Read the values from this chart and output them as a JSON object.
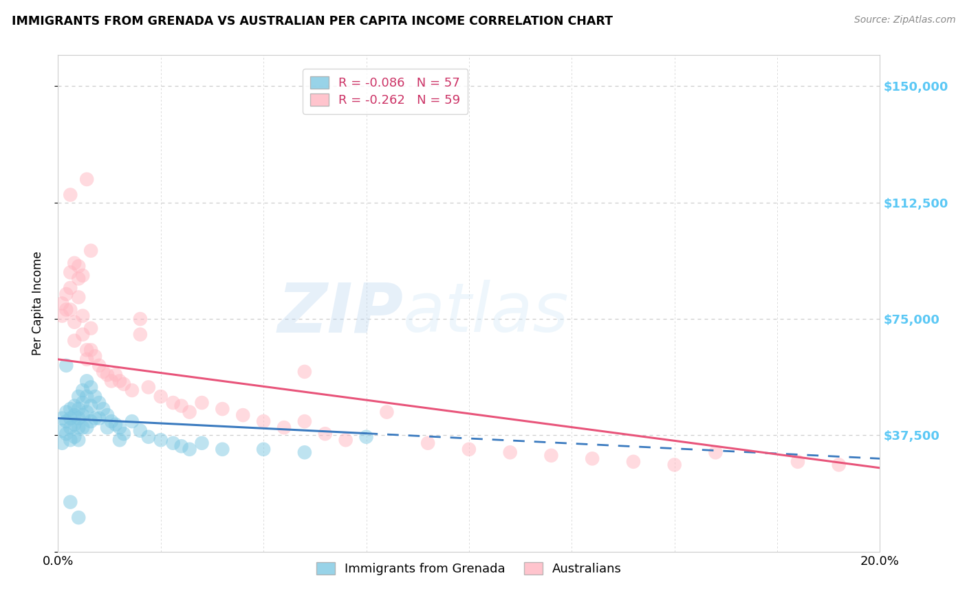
{
  "title": "IMMIGRANTS FROM GRENADA VS AUSTRALIAN PER CAPITA INCOME CORRELATION CHART",
  "source": "Source: ZipAtlas.com",
  "ylabel": "Per Capita Income",
  "yticks": [
    0,
    37500,
    75000,
    112500,
    150000
  ],
  "ytick_labels": [
    "",
    "$37,500",
    "$75,000",
    "$112,500",
    "$150,000"
  ],
  "xlim": [
    0.0,
    0.2
  ],
  "ylim": [
    0,
    160000
  ],
  "legend_blue_r": "R = -0.086",
  "legend_blue_n": "N = 57",
  "legend_pink_r": "R = -0.262",
  "legend_pink_n": "N = 59",
  "watermark_zip": "ZIP",
  "watermark_atlas": "atlas",
  "blue_color": "#7ec8e3",
  "pink_color": "#ffb6c1",
  "blue_line_color": "#3a7abf",
  "pink_line_color": "#e8547a",
  "blue_line_solid_end": 0.075,
  "blue_line_x0": 0.0,
  "blue_line_y0": 43000,
  "blue_line_x1": 0.2,
  "blue_line_y1": 30000,
  "pink_line_x0": 0.0,
  "pink_line_y0": 62000,
  "pink_line_x1": 0.2,
  "pink_line_y1": 27000,
  "blue_scatter_x": [
    0.001,
    0.001,
    0.001,
    0.002,
    0.002,
    0.002,
    0.003,
    0.003,
    0.003,
    0.003,
    0.004,
    0.004,
    0.004,
    0.004,
    0.005,
    0.005,
    0.005,
    0.005,
    0.005,
    0.006,
    0.006,
    0.006,
    0.006,
    0.007,
    0.007,
    0.007,
    0.007,
    0.008,
    0.008,
    0.008,
    0.009,
    0.009,
    0.01,
    0.01,
    0.011,
    0.012,
    0.012,
    0.013,
    0.014,
    0.015,
    0.015,
    0.016,
    0.018,
    0.02,
    0.022,
    0.025,
    0.028,
    0.03,
    0.032,
    0.035,
    0.04,
    0.05,
    0.06,
    0.075,
    0.003,
    0.005,
    0.002
  ],
  "blue_scatter_y": [
    43000,
    39000,
    35000,
    45000,
    42000,
    38000,
    46000,
    43000,
    40000,
    36000,
    47000,
    44000,
    41000,
    37000,
    50000,
    46000,
    43000,
    40000,
    36000,
    52000,
    48000,
    44000,
    40000,
    55000,
    50000,
    45000,
    40000,
    53000,
    47000,
    42000,
    50000,
    43000,
    48000,
    43000,
    46000,
    44000,
    40000,
    42000,
    41000,
    40000,
    36000,
    38000,
    42000,
    39000,
    37000,
    36000,
    35000,
    34000,
    33000,
    35000,
    33000,
    33000,
    32000,
    37000,
    16000,
    11000,
    60000
  ],
  "pink_scatter_x": [
    0.001,
    0.001,
    0.002,
    0.002,
    0.003,
    0.003,
    0.003,
    0.004,
    0.004,
    0.005,
    0.005,
    0.006,
    0.006,
    0.007,
    0.007,
    0.008,
    0.008,
    0.009,
    0.01,
    0.011,
    0.012,
    0.013,
    0.014,
    0.015,
    0.016,
    0.018,
    0.02,
    0.022,
    0.025,
    0.028,
    0.03,
    0.032,
    0.035,
    0.04,
    0.045,
    0.05,
    0.055,
    0.06,
    0.065,
    0.07,
    0.08,
    0.09,
    0.1,
    0.11,
    0.12,
    0.13,
    0.14,
    0.15,
    0.16,
    0.18,
    0.19,
    0.003,
    0.004,
    0.005,
    0.006,
    0.007,
    0.008,
    0.02,
    0.06
  ],
  "pink_scatter_y": [
    80000,
    76000,
    83000,
    78000,
    90000,
    85000,
    78000,
    74000,
    68000,
    88000,
    82000,
    76000,
    70000,
    65000,
    62000,
    72000,
    65000,
    63000,
    60000,
    58000,
    57000,
    55000,
    57000,
    55000,
    54000,
    52000,
    75000,
    53000,
    50000,
    48000,
    47000,
    45000,
    48000,
    46000,
    44000,
    42000,
    40000,
    42000,
    38000,
    36000,
    45000,
    35000,
    33000,
    32000,
    31000,
    30000,
    29000,
    28000,
    32000,
    29000,
    28000,
    115000,
    93000,
    92000,
    89000,
    120000,
    97000,
    70000,
    58000
  ]
}
